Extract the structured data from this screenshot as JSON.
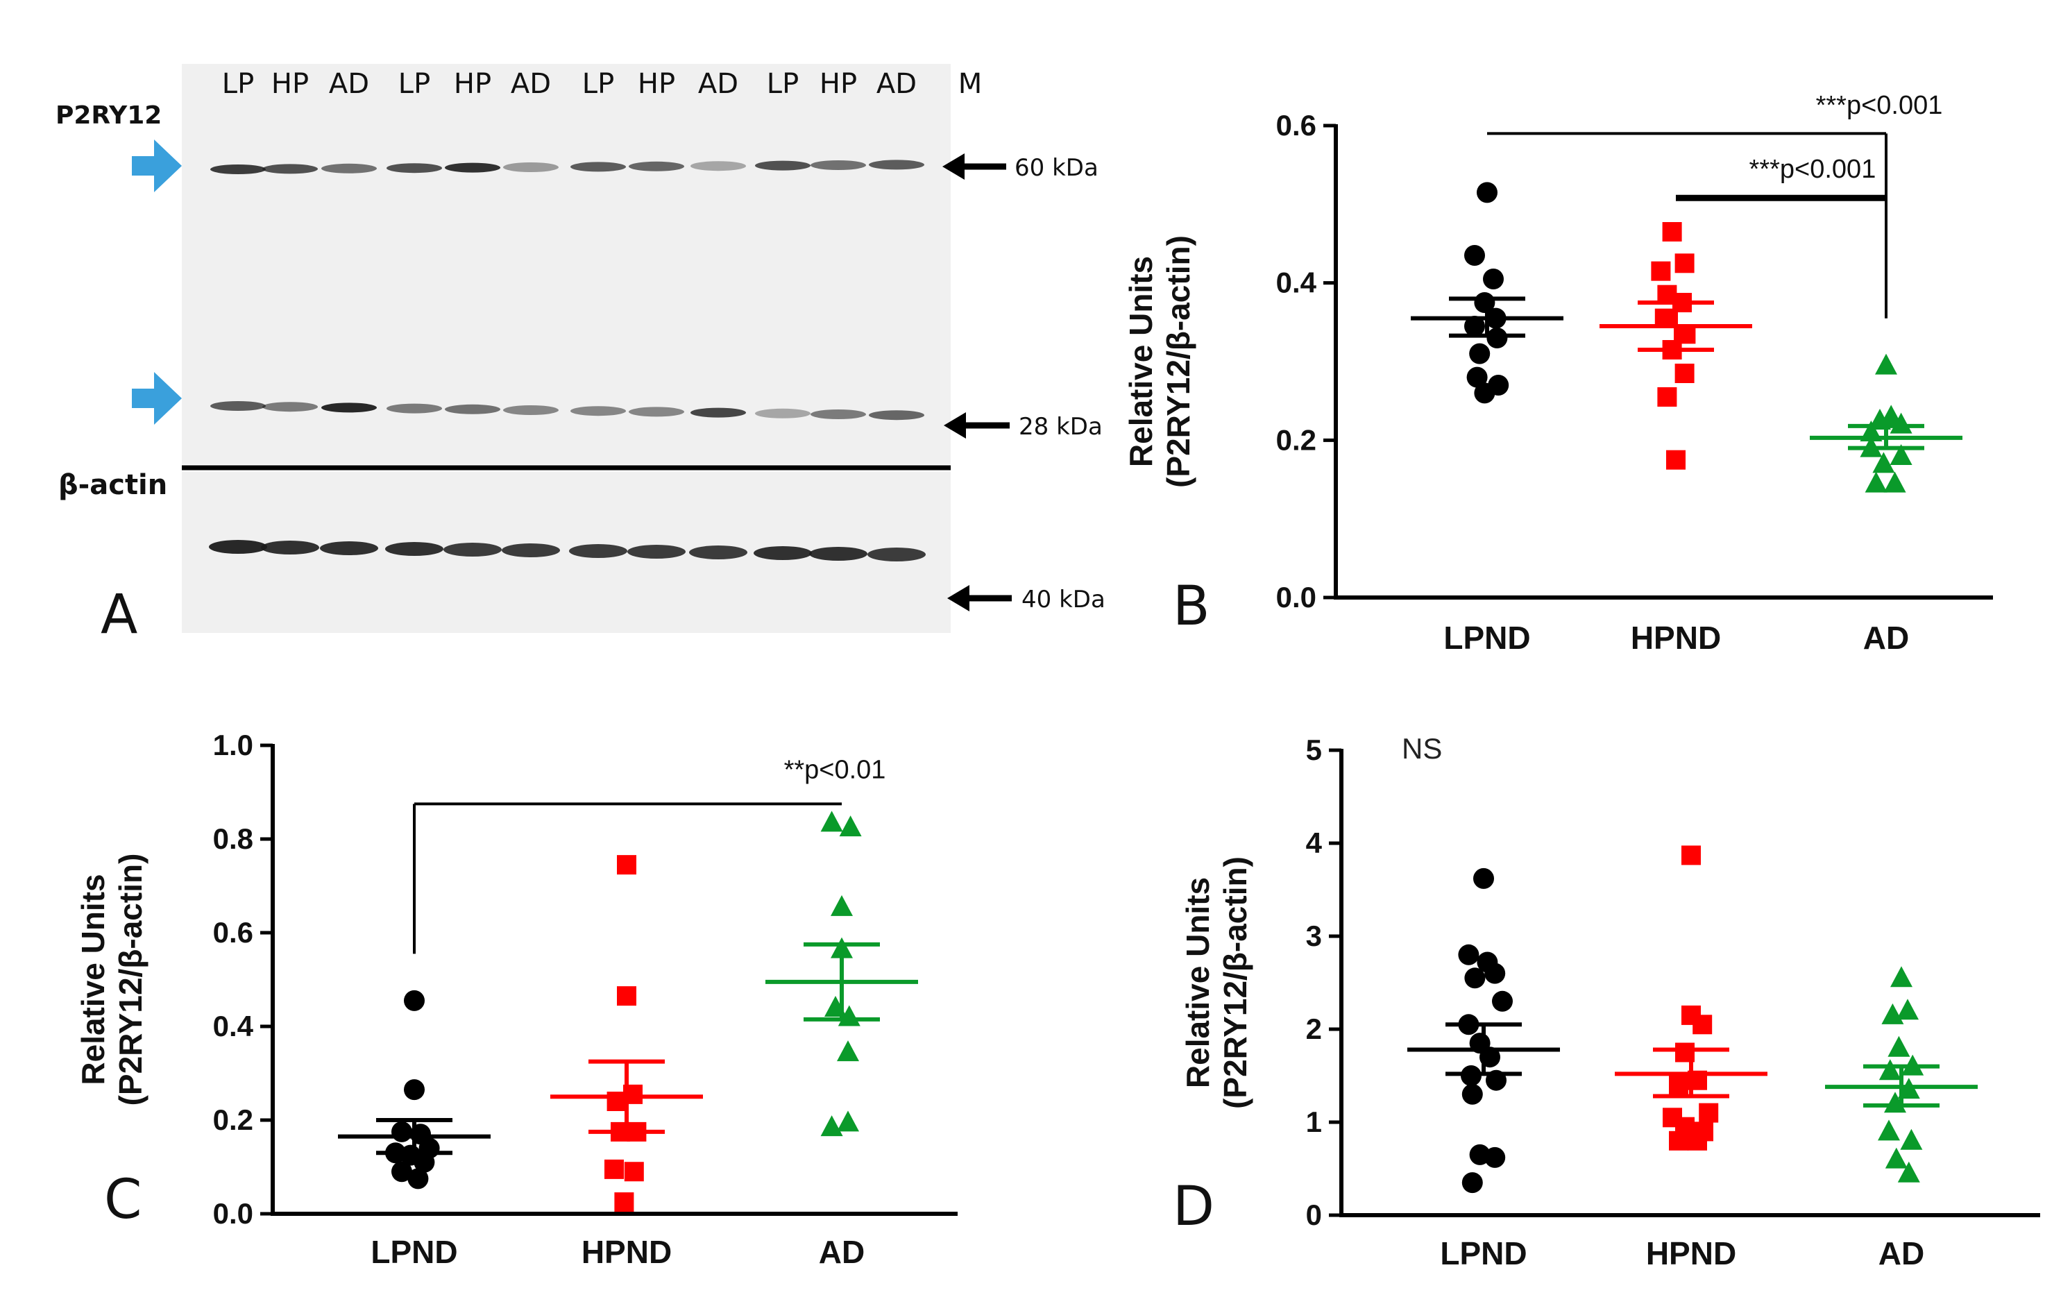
{
  "panel_a": {
    "letter": "A",
    "protein_label": "P2RY12",
    "loading_label": "β-actin",
    "lanes": [
      "LP",
      "HP",
      "AD",
      "LP",
      "HP",
      "AD",
      "LP",
      "HP",
      "AD",
      "LP",
      "HP",
      "AD",
      "M"
    ],
    "markers": [
      "60 kDa",
      "28 kDa",
      "40 kDa"
    ],
    "colors": {
      "arrow": "#3aa0dc",
      "band": "#1c1c1c",
      "membrane": "#f0f0f0"
    }
  },
  "colors": {
    "LPND": "#000000",
    "HPND": "#ff0000",
    "AD": "#0a9a2a"
  },
  "chart_data": [
    {
      "id": "B",
      "letter": "B",
      "type": "scatter",
      "ylabel_line1": "Relative Units",
      "ylabel_line2": "(P2RY12/β-actin)",
      "categories": [
        "LPND",
        "HPND",
        "AD"
      ],
      "ylim": [
        0,
        0.6
      ],
      "yticks": [
        "0.0",
        "0.2",
        "0.4",
        "0.6"
      ],
      "ytick_values": [
        0,
        0.2,
        0.4,
        0.6
      ],
      "series": [
        {
          "name": "LPND",
          "marker": "circle",
          "mean": 0.355,
          "sem_low": 0.333,
          "sem_high": 0.38,
          "points": [
            [
              0,
              0.515
            ],
            [
              -0.1,
              0.435
            ],
            [
              0.05,
              0.405
            ],
            [
              -0.02,
              0.375
            ],
            [
              0.07,
              0.355
            ],
            [
              -0.1,
              0.345
            ],
            [
              0.08,
              0.33
            ],
            [
              -0.06,
              0.31
            ],
            [
              -0.08,
              0.28
            ],
            [
              0.09,
              0.27
            ],
            [
              -0.02,
              0.26
            ]
          ]
        },
        {
          "name": "HPND",
          "marker": "square",
          "mean": 0.345,
          "sem_low": 0.315,
          "sem_high": 0.375,
          "points": [
            [
              -0.03,
              0.465
            ],
            [
              -0.12,
              0.415
            ],
            [
              0.07,
              0.425
            ],
            [
              -0.07,
              0.385
            ],
            [
              0.05,
              0.375
            ],
            [
              -0.09,
              0.355
            ],
            [
              0.08,
              0.335
            ],
            [
              -0.03,
              0.315
            ],
            [
              0.07,
              0.285
            ],
            [
              -0.07,
              0.255
            ],
            [
              0.0,
              0.175
            ]
          ]
        },
        {
          "name": "AD",
          "marker": "triangle",
          "mean": 0.203,
          "sem_low": 0.19,
          "sem_high": 0.218,
          "points": [
            [
              0.0,
              0.295
            ],
            [
              -0.12,
              0.21
            ],
            [
              -0.05,
              0.225
            ],
            [
              0.04,
              0.23
            ],
            [
              0.12,
              0.22
            ],
            [
              -0.12,
              0.19
            ],
            [
              0.12,
              0.18
            ],
            [
              -0.02,
              0.17
            ],
            [
              -0.08,
              0.145
            ],
            [
              0.07,
              0.145
            ]
          ]
        }
      ],
      "annotations": [
        {
          "text": "***p<0.001",
          "from": 0,
          "to": 2,
          "y": 0.59,
          "drop_to": 0.355,
          "label_y": 0.615,
          "label_pos": 2,
          "bold": false
        },
        {
          "text": "***p<0.001",
          "from": 1,
          "to": 2,
          "y": 0.508,
          "drop_to": 0.355,
          "label_y": 0.534,
          "label_pos": 1.65,
          "bold": true
        }
      ]
    },
    {
      "id": "C",
      "letter": "C",
      "type": "scatter",
      "ylabel_line1": "Relative Units",
      "ylabel_line2": "(P2RY12/β-actin)",
      "categories": [
        "LPND",
        "HPND",
        "AD"
      ],
      "ylim": [
        0,
        1.0
      ],
      "yticks": [
        "0.0",
        "0.2",
        "0.4",
        "0.6",
        "0.8",
        "1.0"
      ],
      "ytick_values": [
        0,
        0.2,
        0.4,
        0.6,
        0.8,
        1.0
      ],
      "series": [
        {
          "name": "LPND",
          "marker": "circle",
          "mean": 0.165,
          "sem_low": 0.13,
          "sem_high": 0.2,
          "points": [
            [
              0,
              0.455
            ],
            [
              0.0,
              0.265
            ],
            [
              -0.1,
              0.175
            ],
            [
              0.05,
              0.17
            ],
            [
              0.12,
              0.14
            ],
            [
              -0.15,
              0.13
            ],
            [
              -0.03,
              0.125
            ],
            [
              0.08,
              0.11
            ],
            [
              -0.1,
              0.09
            ],
            [
              0.03,
              0.075
            ]
          ]
        },
        {
          "name": "HPND",
          "marker": "square",
          "mean": 0.25,
          "sem_low": 0.175,
          "sem_high": 0.325,
          "points": [
            [
              0.0,
              0.745
            ],
            [
              0.0,
              0.465
            ],
            [
              0.05,
              0.255
            ],
            [
              -0.08,
              0.24
            ],
            [
              -0.05,
              0.175
            ],
            [
              0.08,
              0.175
            ],
            [
              -0.1,
              0.095
            ],
            [
              0.06,
              0.09
            ],
            [
              -0.02,
              0.025
            ]
          ]
        },
        {
          "name": "AD",
          "marker": "triangle",
          "mean": 0.495,
          "sem_low": 0.415,
          "sem_high": 0.575,
          "points": [
            [
              -0.08,
              0.835
            ],
            [
              0.07,
              0.825
            ],
            [
              0.0,
              0.655
            ],
            [
              0.0,
              0.565
            ],
            [
              -0.05,
              0.44
            ],
            [
              0.06,
              0.42
            ],
            [
              0.05,
              0.345
            ],
            [
              -0.08,
              0.185
            ],
            [
              0.05,
              0.195
            ]
          ]
        }
      ],
      "annotations": [
        {
          "text": "**p<0.01",
          "from": 0,
          "to": 2,
          "y": 0.875,
          "drop_to": 0.555,
          "drop_at": "from",
          "label_y": 0.93,
          "label_pos": 2,
          "bold": false
        }
      ]
    },
    {
      "id": "D",
      "letter": "D",
      "type": "scatter",
      "ylabel_line1": "Relative Units",
      "ylabel_line2": "(P2RY12/β-actin)",
      "categories": [
        "LPND",
        "HPND",
        "AD"
      ],
      "ylim": [
        0,
        5
      ],
      "yticks": [
        "0",
        "1",
        "2",
        "3",
        "4",
        "5"
      ],
      "ytick_values": [
        0,
        1,
        2,
        3,
        4,
        5
      ],
      "top_label": "NS",
      "series": [
        {
          "name": "LPND",
          "marker": "circle",
          "mean": 1.78,
          "sem_low": 1.52,
          "sem_high": 2.05,
          "points": [
            [
              0,
              3.62
            ],
            [
              -0.12,
              2.8
            ],
            [
              0.03,
              2.72
            ],
            [
              0.09,
              2.6
            ],
            [
              -0.07,
              2.55
            ],
            [
              0.15,
              2.3
            ],
            [
              -0.12,
              2.05
            ],
            [
              -0.03,
              1.85
            ],
            [
              0.05,
              1.7
            ],
            [
              -0.1,
              1.5
            ],
            [
              0.1,
              1.45
            ],
            [
              -0.09,
              1.3
            ],
            [
              0.09,
              0.62
            ],
            [
              -0.03,
              0.65
            ],
            [
              -0.09,
              0.35
            ]
          ]
        },
        {
          "name": "HPND",
          "marker": "square",
          "mean": 1.52,
          "sem_low": 1.28,
          "sem_high": 1.78,
          "points": [
            [
              0.0,
              3.87
            ],
            [
              0.0,
              2.15
            ],
            [
              0.09,
              2.05
            ],
            [
              -0.05,
              1.75
            ],
            [
              0.05,
              1.45
            ],
            [
              -0.1,
              1.4
            ],
            [
              -0.15,
              1.05
            ],
            [
              0.14,
              1.1
            ],
            [
              0.1,
              0.9
            ],
            [
              -0.05,
              0.95
            ],
            [
              0.05,
              0.8
            ],
            [
              -0.1,
              0.8
            ]
          ]
        },
        {
          "name": "AD",
          "marker": "triangle",
          "mean": 1.38,
          "sem_low": 1.18,
          "sem_high": 1.6,
          "points": [
            [
              0.0,
              2.55
            ],
            [
              0.05,
              2.2
            ],
            [
              -0.07,
              2.15
            ],
            [
              -0.02,
              1.8
            ],
            [
              0.09,
              1.6
            ],
            [
              -0.09,
              1.55
            ],
            [
              0.06,
              1.35
            ],
            [
              -0.05,
              1.2
            ],
            [
              -0.1,
              0.9
            ],
            [
              0.08,
              0.8
            ],
            [
              -0.04,
              0.6
            ],
            [
              0.06,
              0.45
            ]
          ]
        }
      ],
      "annotations": []
    }
  ]
}
